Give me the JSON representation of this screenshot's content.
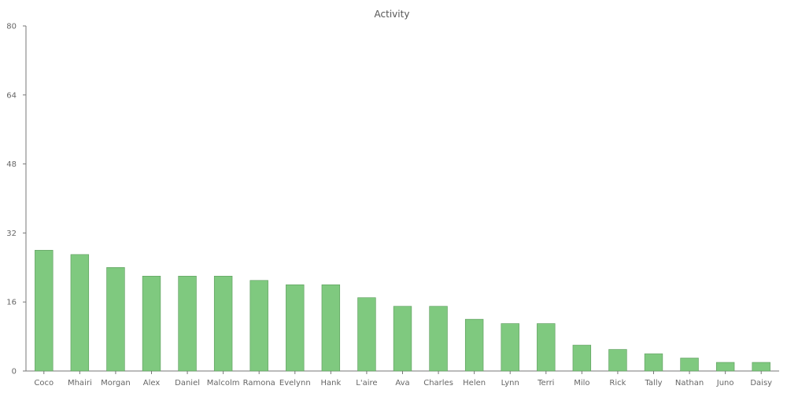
{
  "chart_data": {
    "type": "bar",
    "title": "Activity",
    "xlabel": "",
    "ylabel": "",
    "categories": [
      "Coco",
      "Mhairi",
      "Morgan",
      "Alex",
      "Daniel",
      "Malcolm",
      "Ramona",
      "Evelynn",
      "Hank",
      "L'aire",
      "Ava",
      "Charles",
      "Helen",
      "Lynn",
      "Terri",
      "Milo",
      "Rick",
      "Tally",
      "Nathan",
      "Juno",
      "Daisy"
    ],
    "values": [
      28,
      27,
      24,
      22,
      22,
      22,
      21,
      20,
      20,
      17,
      15,
      15,
      12,
      11,
      11,
      6,
      5,
      4,
      3,
      2,
      2
    ],
    "ylim": [
      0,
      80
    ],
    "yticks": [
      0,
      16,
      32,
      48,
      64,
      80
    ],
    "bar_color": "#7fc97f",
    "grid": false,
    "legend": "none"
  }
}
